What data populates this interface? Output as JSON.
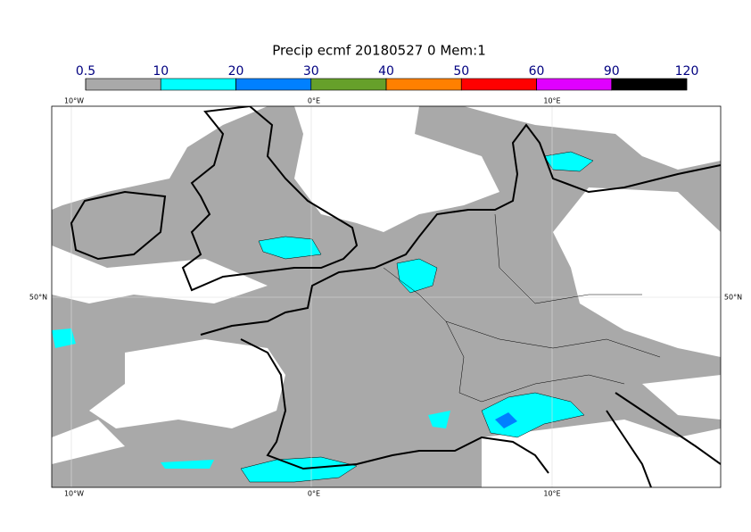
{
  "title": "Precip ecmf 20180527 0 Mem:1",
  "colorbar": {
    "ticks": [
      0.5,
      10,
      20,
      30,
      40,
      50,
      60,
      90,
      120
    ],
    "colors": [
      "#a9a9a9",
      "#00ffff",
      "#0080ff",
      "#66a02a",
      "#ff8000",
      "#ff0000",
      "#e000ff",
      "#000000"
    ]
  },
  "lon_labels": [
    "10°W",
    "0°E",
    "10°E"
  ],
  "lat_labels": [
    "50°N"
  ]
}
